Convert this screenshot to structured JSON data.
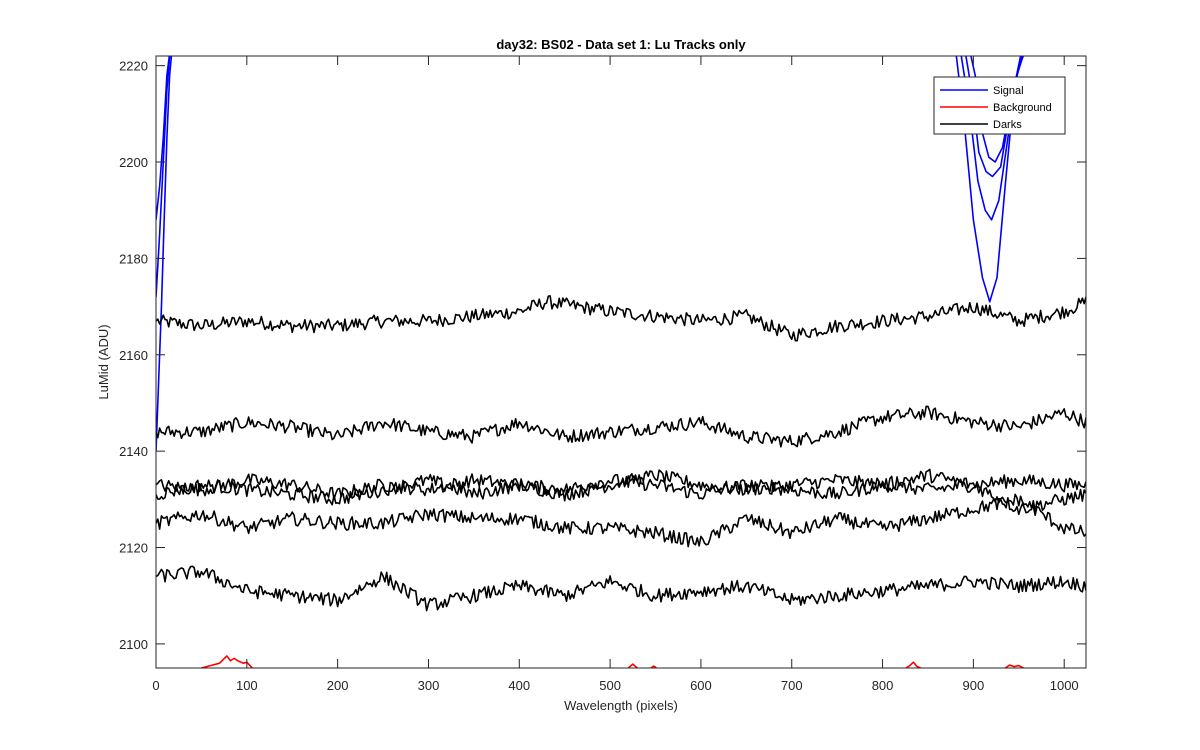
{
  "chart_data": {
    "type": "line",
    "title": "day32: BS02 - Data set 1: Lu Tracks only",
    "xlabel": "Wavelength (pixels)",
    "ylabel": "LuMid (ADU)",
    "xlim": [
      0,
      1024
    ],
    "ylim": [
      2095,
      2222
    ],
    "xticks": [
      0,
      100,
      200,
      300,
      400,
      500,
      600,
      700,
      800,
      900,
      1000
    ],
    "yticks": [
      2100,
      2120,
      2140,
      2160,
      2180,
      2200,
      2220
    ],
    "grid": false,
    "legend_position": "top-right",
    "legend": [
      {
        "name": "Signal",
        "color": "#0000ff"
      },
      {
        "name": "Background",
        "color": "#ff0000"
      },
      {
        "name": "Darks",
        "color": "#000000"
      }
    ],
    "series": [
      {
        "name": "Signal",
        "color": "#0000ff",
        "x": [
          0,
          3,
          6,
          9,
          12,
          15,
          18
        ],
        "y": [
          2140,
          2155,
          2170,
          2188,
          2205,
          2218,
          2224
        ]
      },
      {
        "name": "Signal",
        "color": "#0000ff",
        "x": [
          0,
          4,
          8,
          12,
          16
        ],
        "y": [
          2172,
          2185,
          2200,
          2215,
          2224
        ]
      },
      {
        "name": "Signal",
        "color": "#0000ff",
        "x": [
          0,
          4,
          8,
          12,
          16
        ],
        "y": [
          2188,
          2195,
          2205,
          2218,
          2224
        ]
      },
      {
        "name": "Signal",
        "color": "#0000ff",
        "x": [
          880,
          890,
          900,
          910,
          918,
          926,
          935,
          945,
          955
        ],
        "y": [
          2224,
          2208,
          2188,
          2176,
          2171,
          2176,
          2195,
          2215,
          2224
        ]
      },
      {
        "name": "Signal",
        "color": "#0000ff",
        "x": [
          885,
          895,
          905,
          913,
          920,
          928,
          938,
          948,
          958
        ],
        "y": [
          2224,
          2212,
          2196,
          2190,
          2188,
          2192,
          2205,
          2218,
          2224
        ]
      },
      {
        "name": "Signal",
        "color": "#0000ff",
        "x": [
          890,
          898,
          906,
          914,
          921,
          930,
          940,
          950,
          960
        ],
        "y": [
          2224,
          2215,
          2202,
          2198,
          2197,
          2199,
          2210,
          2220,
          2224
        ]
      },
      {
        "name": "Signal",
        "color": "#0000ff",
        "x": [
          895,
          902,
          910,
          917,
          924,
          932,
          942,
          952,
          962
        ],
        "y": [
          2224,
          2218,
          2206,
          2201,
          2200,
          2203,
          2213,
          2222,
          2224
        ]
      },
      {
        "name": "Darks",
        "color": "#000000",
        "x": [
          0,
          50,
          100,
          150,
          200,
          250,
          300,
          350,
          400,
          430,
          500,
          550,
          600,
          650,
          700,
          750,
          800,
          850,
          900,
          950,
          1000,
          1024
        ],
        "y": [
          2167,
          2166,
          2167,
          2166,
          2166,
          2167,
          2167,
          2168,
          2169,
          2171,
          2169,
          2168,
          2167,
          2168,
          2164,
          2166,
          2167,
          2168,
          2170,
          2167,
          2169,
          2171
        ]
      },
      {
        "name": "Darks",
        "color": "#000000",
        "x": [
          0,
          50,
          100,
          150,
          200,
          250,
          300,
          350,
          400,
          450,
          500,
          550,
          600,
          650,
          700,
          750,
          800,
          850,
          900,
          950,
          1000,
          1024
        ],
        "y": [
          2144,
          2144,
          2146,
          2145,
          2143,
          2146,
          2144,
          2143,
          2146,
          2143,
          2144,
          2145,
          2146,
          2143,
          2142,
          2144,
          2147,
          2148,
          2146,
          2145,
          2148,
          2146
        ]
      },
      {
        "name": "Darks",
        "color": "#000000",
        "x": [
          0,
          50,
          100,
          150,
          200,
          250,
          300,
          350,
          400,
          450,
          500,
          550,
          600,
          650,
          700,
          750,
          800,
          850,
          900,
          950,
          1000,
          1024
        ],
        "y": [
          2133,
          2132,
          2134,
          2133,
          2131,
          2133,
          2132,
          2134,
          2133,
          2131,
          2133,
          2135,
          2133,
          2132,
          2133,
          2134,
          2133,
          2132,
          2133,
          2134,
          2133,
          2133
        ]
      },
      {
        "name": "Darks",
        "color": "#000000",
        "x": [
          0,
          50,
          100,
          150,
          200,
          250,
          300,
          350,
          400,
          450,
          500,
          550,
          600,
          650,
          700,
          750,
          800,
          850,
          900,
          950,
          1000,
          1024
        ],
        "y": [
          2131,
          2133,
          2132,
          2131,
          2130,
          2132,
          2134,
          2131,
          2133,
          2132,
          2134,
          2133,
          2131,
          2133,
          2132,
          2131,
          2133,
          2135,
          2133,
          2128,
          2130,
          2131
        ]
      },
      {
        "name": "Darks",
        "color": "#000000",
        "x": [
          0,
          50,
          100,
          150,
          200,
          250,
          300,
          350,
          400,
          450,
          500,
          550,
          600,
          650,
          700,
          750,
          800,
          850,
          900,
          950,
          1000,
          1024
        ],
        "y": [
          2125,
          2127,
          2124,
          2126,
          2125,
          2125,
          2127,
          2126,
          2126,
          2124,
          2124,
          2123,
          2121,
          2126,
          2123,
          2126,
          2124,
          2126,
          2128,
          2130,
          2124,
          2123
        ]
      },
      {
        "name": "Darks",
        "color": "#000000",
        "x": [
          0,
          50,
          100,
          150,
          200,
          250,
          300,
          350,
          400,
          450,
          500,
          550,
          600,
          650,
          700,
          750,
          800,
          850,
          900,
          950,
          1000,
          1024
        ],
        "y": [
          2114,
          2115,
          2111,
          2110,
          2109,
          2114,
          2108,
          2110,
          2112,
          2110,
          2113,
          2110,
          2111,
          2112,
          2109,
          2110,
          2111,
          2112,
          2113,
          2112,
          2113,
          2112
        ]
      },
      {
        "name": "Background",
        "color": "#ff0000",
        "x": [
          50,
          60,
          70,
          78,
          82,
          86,
          90,
          96,
          100,
          106
        ],
        "y": [
          2095,
          2095.5,
          2096,
          2097.5,
          2096.5,
          2097,
          2096.5,
          2096,
          2096.2,
          2095
        ]
      },
      {
        "name": "Background",
        "color": "#ff0000",
        "x": [
          520,
          525,
          530
        ],
        "y": [
          2095,
          2095.8,
          2095
        ]
      },
      {
        "name": "Background",
        "color": "#ff0000",
        "x": [
          545,
          548,
          551
        ],
        "y": [
          2095,
          2095.4,
          2095
        ]
      },
      {
        "name": "Background",
        "color": "#ff0000",
        "x": [
          826,
          830,
          834,
          838,
          842
        ],
        "y": [
          2095,
          2095.5,
          2096.2,
          2095.3,
          2095
        ]
      },
      {
        "name": "Background",
        "color": "#ff0000",
        "x": [
          935,
          940,
          945,
          950,
          955
        ],
        "y": [
          2095,
          2095.6,
          2095.3,
          2095.5,
          2095
        ]
      }
    ]
  }
}
